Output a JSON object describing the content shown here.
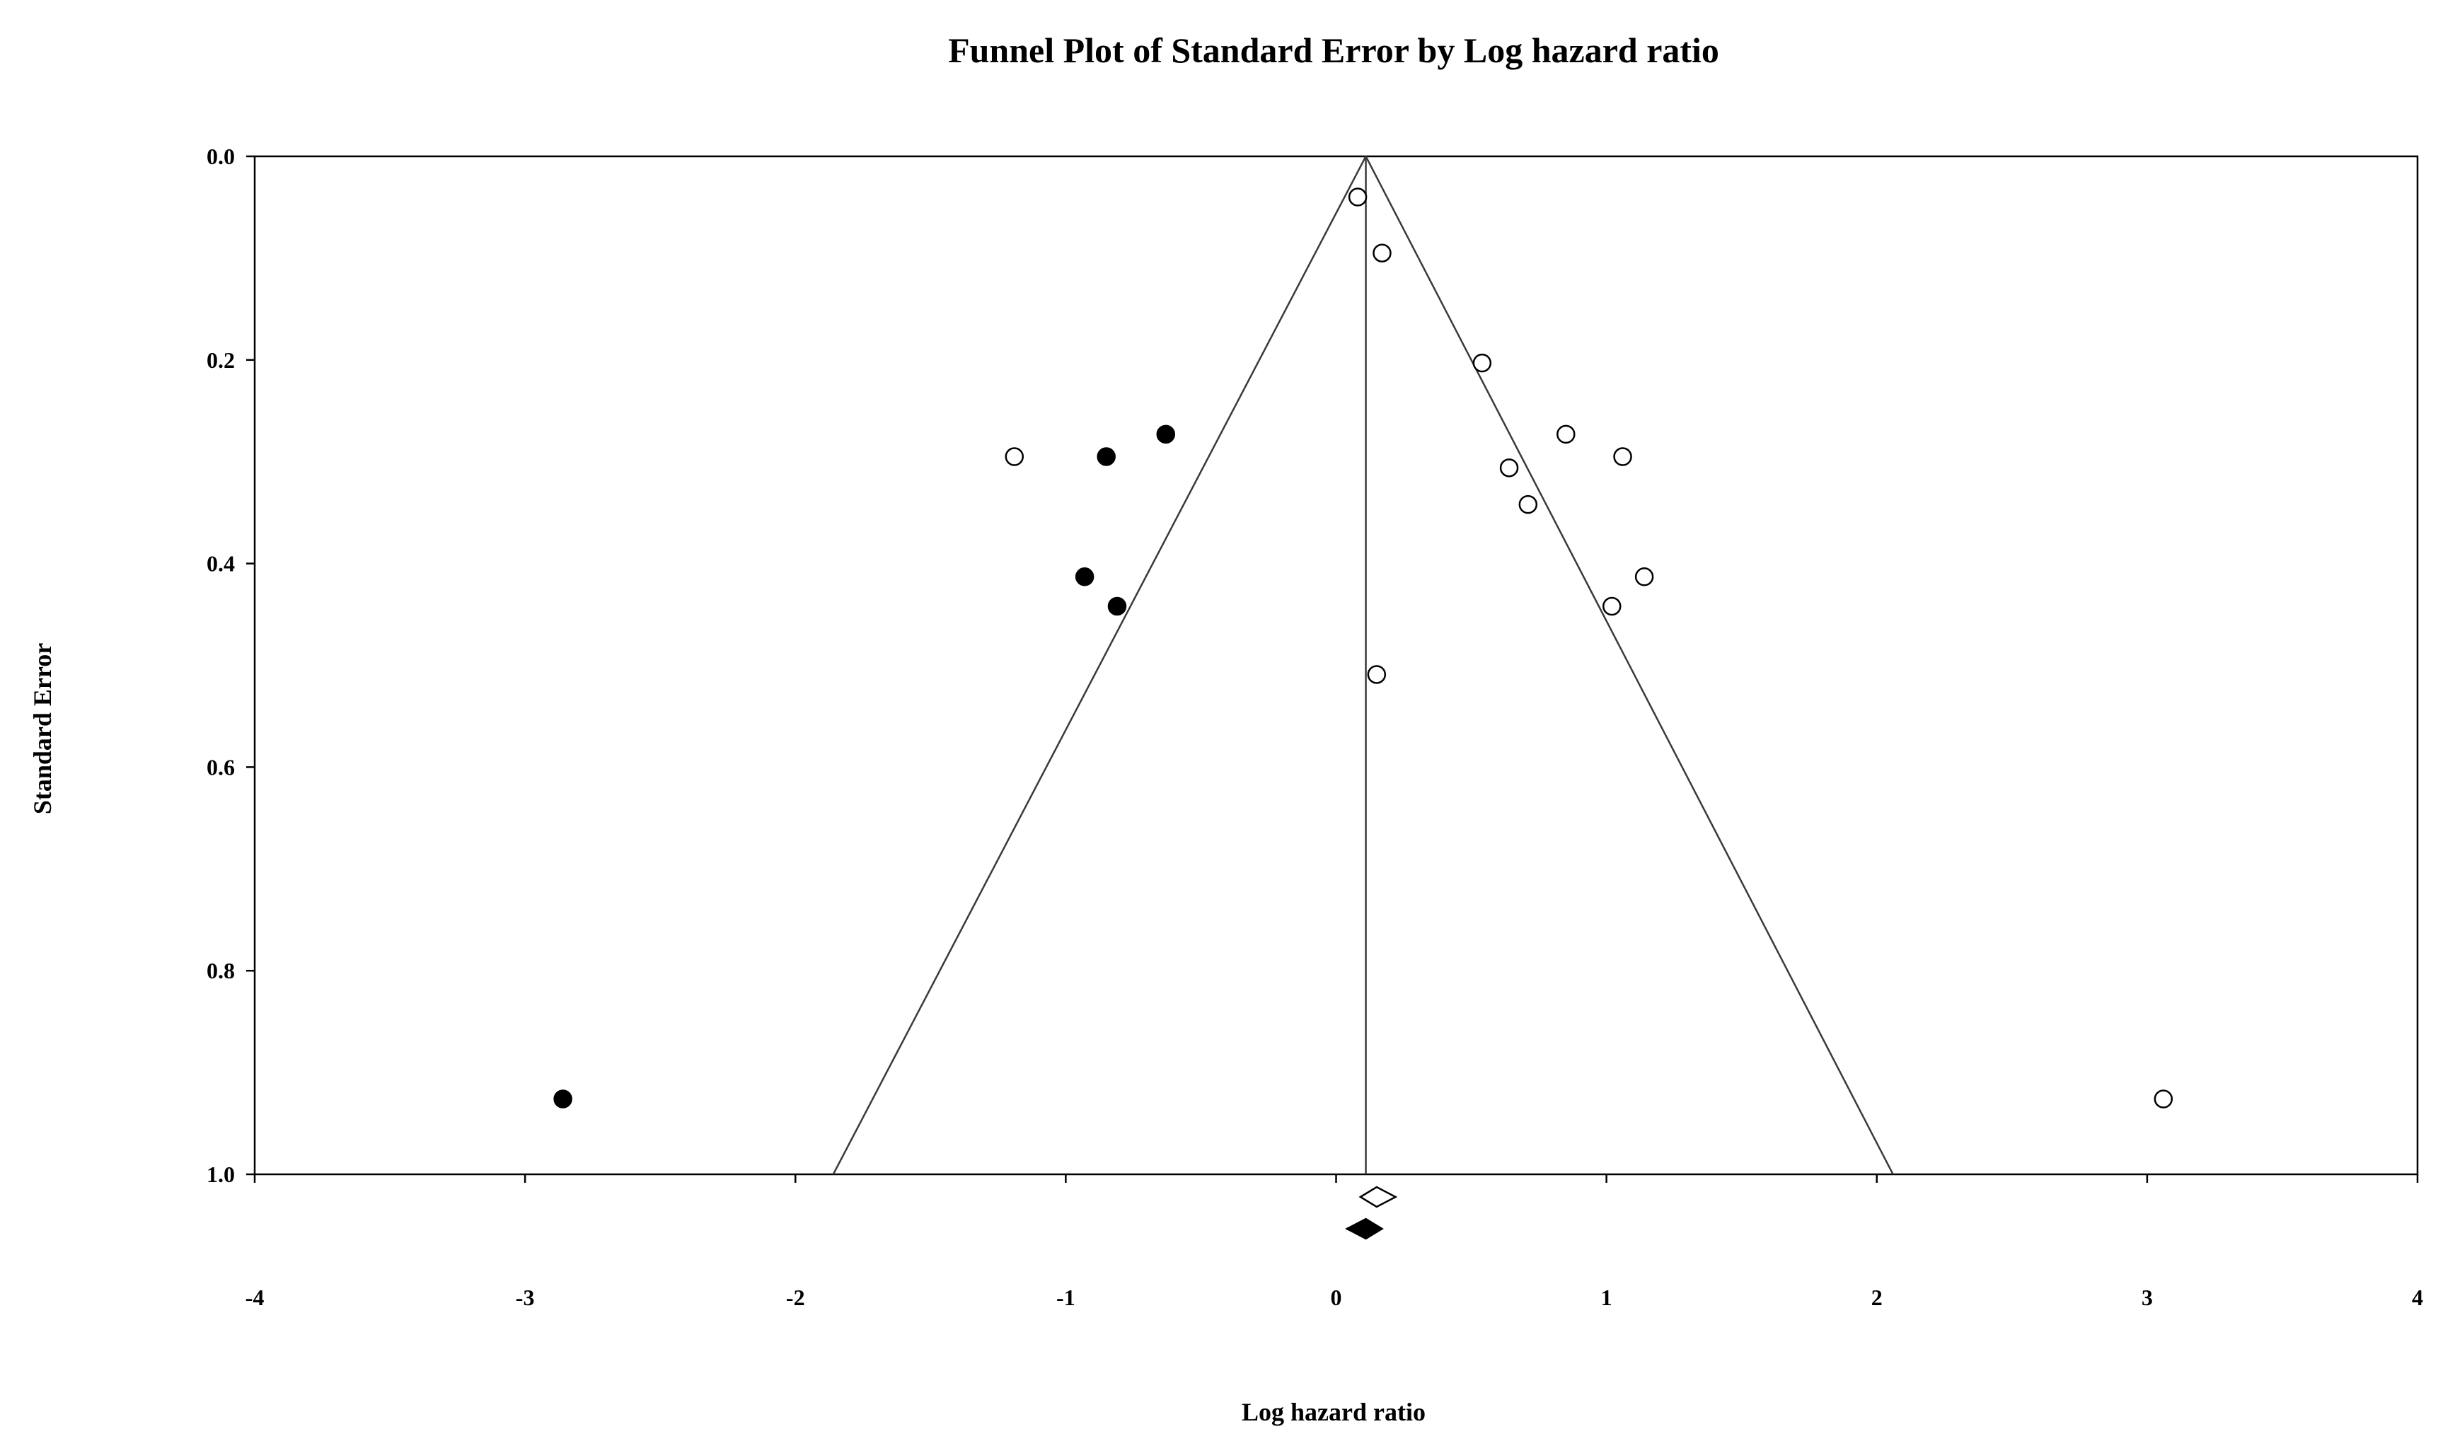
{
  "chart_data": {
    "type": "scatter",
    "title": "Funnel Plot of Standard Error by Log hazard ratio",
    "xlabel": "Log hazard ratio",
    "ylabel": "Standard Error",
    "xlim": [
      -4,
      4
    ],
    "ylim": [
      0.0,
      1.0
    ],
    "y_inverted": true,
    "x_ticks": [
      "-4",
      "-3",
      "-2",
      "-1",
      "0",
      "1",
      "2",
      "3",
      "4"
    ],
    "x_tick_values": [
      -4,
      -3,
      -2,
      -1,
      0,
      1,
      2,
      3,
      4
    ],
    "y_ticks": [
      "0.0",
      "0.2",
      "0.4",
      "0.6",
      "0.8",
      "1.0"
    ],
    "y_tick_values": [
      0.0,
      0.2,
      0.4,
      0.6,
      0.8,
      1.0
    ],
    "grid": false,
    "legend": "none",
    "summary_effect_x": 0.11,
    "funnel": {
      "apex": [
        0.11,
        0.0
      ],
      "bottom_left": [
        -1.86,
        1.0
      ],
      "bottom_right": [
        2.06,
        1.0
      ]
    },
    "series": [
      {
        "marker": "open-circle",
        "points": [
          {
            "x": 0.08,
            "y": 0.04
          },
          {
            "x": 0.17,
            "y": 0.095
          },
          {
            "x": 0.54,
            "y": 0.203
          },
          {
            "x": 0.85,
            "y": 0.273
          },
          {
            "x": 1.06,
            "y": 0.295
          },
          {
            "x": -1.19,
            "y": 0.295
          },
          {
            "x": 0.64,
            "y": 0.306
          },
          {
            "x": 0.71,
            "y": 0.342
          },
          {
            "x": 1.14,
            "y": 0.413
          },
          {
            "x": 1.02,
            "y": 0.442
          },
          {
            "x": 0.15,
            "y": 0.509
          },
          {
            "x": 3.06,
            "y": 0.926
          }
        ]
      },
      {
        "marker": "filled-circle",
        "points": [
          {
            "x": -0.63,
            "y": 0.273
          },
          {
            "x": -0.85,
            "y": 0.295
          },
          {
            "x": -0.93,
            "y": 0.413
          },
          {
            "x": -0.81,
            "y": 0.442
          },
          {
            "x": -2.86,
            "y": 0.926
          }
        ]
      }
    ],
    "summary_diamonds": [
      {
        "marker": "open-diamond",
        "x": 0.15,
        "x_low": 0.09,
        "x_high": 0.22
      },
      {
        "marker": "filled-diamond",
        "x": 0.11,
        "x_low": 0.04,
        "x_high": 0.17
      }
    ],
    "colors": {
      "axis": "#000000",
      "open_marker_fill": "#ffffff",
      "filled_marker_fill": "#000000",
      "funnel_line": "#3a3a3a"
    }
  }
}
